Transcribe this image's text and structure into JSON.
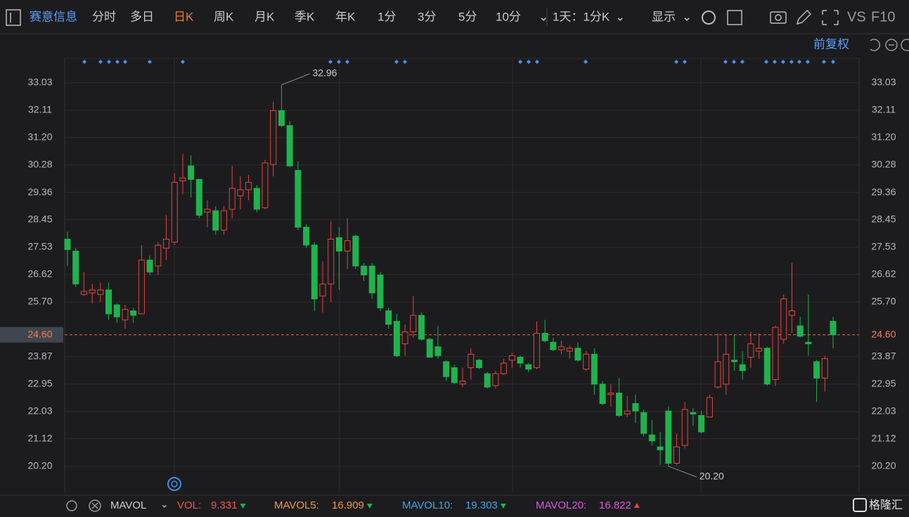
{
  "toolbar": {
    "stock": "赛意信息",
    "tabs": [
      "分时",
      "多日",
      "日K",
      "周K",
      "月K",
      "季K",
      "年K",
      "1分",
      "3分",
      "5分",
      "10分"
    ],
    "period": "1天：1分K",
    "display": "显示",
    "vs": "VS",
    "f10": "F10",
    "adjust": "前复权"
  },
  "chart_data": {
    "type": "candlestick",
    "up_color": "#e8453c",
    "down_color": "#1fb34d",
    "grid": true,
    "ylim": [
      19.35,
      33.85
    ],
    "yticks": [
      {
        "value": 20.2,
        "label": "20.20"
      },
      21.12,
      22.03,
      22.95,
      23.87,
      {
        "value": 25.7,
        "label": "25.70"
      },
      26.62,
      27.53,
      28.45,
      29.36,
      30.28,
      {
        "value": 31.2,
        "label": "31.20"
      },
      32.11,
      33.03
    ],
    "last_price": {
      "value": 24.6,
      "label": "24.60"
    },
    "annotations": [
      "32.96",
      "20.20"
    ],
    "open": [
      27.8,
      27.4,
      25.95,
      26.0,
      25.95,
      26.1,
      25.6,
      25.1,
      25.4,
      25.3,
      27.1,
      26.9,
      27.5,
      27.7,
      29.75,
      30.25,
      29.8,
      28.7,
      28.75,
      28.1,
      28.8,
      29.25,
      29.45,
      29.5,
      28.85,
      30.3,
      32.1,
      31.6,
      30.1,
      28.2,
      27.6,
      25.9,
      26.3,
      27.85,
      27.4,
      27.9,
      26.9,
      26.9,
      26.6,
      25.4,
      25.05,
      24.3,
      24.7,
      25.25,
      24.45,
      24.2,
      23.7,
      23.5,
      22.95,
      23.5,
      23.75,
      23.3,
      22.9,
      23.3,
      23.75,
      23.85,
      23.6,
      23.5,
      24.65,
      24.35,
      24.1,
      24.05,
      24.15,
      23.45,
      23.95,
      22.95,
      22.6,
      22.65,
      21.95,
      22.3,
      22.0,
      21.25,
      20.85,
      22.05,
      20.3,
      20.9,
      22.0,
      21.9,
      21.85,
      22.85,
      22.95,
      23.75,
      23.6,
      23.85,
      24.05,
      24.15,
      23.1,
      24.45,
      25.25,
      24.9,
      24.35,
      23.7,
      23.15,
      25.05
    ],
    "high": [
      28.05,
      27.5,
      26.7,
      26.3,
      26.35,
      26.35,
      25.65,
      25.6,
      25.5,
      27.6,
      27.25,
      27.7,
      28.6,
      30.0,
      30.65,
      30.6,
      29.8,
      29.1,
      28.9,
      28.9,
      30.25,
      29.9,
      29.95,
      29.6,
      30.45,
      32.4,
      32.96,
      31.75,
      30.4,
      28.3,
      27.7,
      27.05,
      28.4,
      28.2,
      28.5,
      27.95,
      27.0,
      27.0,
      26.7,
      25.5,
      25.3,
      24.95,
      25.9,
      25.35,
      24.5,
      24.9,
      23.75,
      23.6,
      23.5,
      24.15,
      23.8,
      23.35,
      23.4,
      23.8,
      24.0,
      23.9,
      23.65,
      25.05,
      25.1,
      24.5,
      24.4,
      24.25,
      24.35,
      24.05,
      24.15,
      23.05,
      22.95,
      23.15,
      22.55,
      22.6,
      22.1,
      21.75,
      21.35,
      22.2,
      21.3,
      22.35,
      22.15,
      22.05,
      22.6,
      24.65,
      24.6,
      24.6,
      24.05,
      24.7,
      24.65,
      24.2,
      24.9,
      25.95,
      27.0,
      25.2,
      25.95,
      23.75,
      23.9,
      25.2
    ],
    "low": [
      26.9,
      26.2,
      25.9,
      25.65,
      25.7,
      25.1,
      25.0,
      24.8,
      25.0,
      25.3,
      26.6,
      26.6,
      27.1,
      27.6,
      29.3,
      29.2,
      28.5,
      28.2,
      27.95,
      27.95,
      28.5,
      28.8,
      29.1,
      28.7,
      28.8,
      29.9,
      31.55,
      30.2,
      28.1,
      27.5,
      25.4,
      25.35,
      25.7,
      26.1,
      26.8,
      26.8,
      26.4,
      25.8,
      25.4,
      24.8,
      23.85,
      23.9,
      24.5,
      24.4,
      23.85,
      23.8,
      23.05,
      22.95,
      22.85,
      23.1,
      23.45,
      22.8,
      22.8,
      23.25,
      23.5,
      23.5,
      23.35,
      23.45,
      24.35,
      24.05,
      23.95,
      23.8,
      23.7,
      23.4,
      22.6,
      22.25,
      22.2,
      21.85,
      21.85,
      21.65,
      21.2,
      20.9,
      20.25,
      20.2,
      20.25,
      20.8,
      21.55,
      21.3,
      21.85,
      22.8,
      22.6,
      23.4,
      23.1,
      23.5,
      23.8,
      22.9,
      22.9,
      24.3,
      24.65,
      24.5,
      23.9,
      22.35,
      22.7,
      24.15
    ],
    "close": [
      27.45,
      26.3,
      26.05,
      26.1,
      26.1,
      25.3,
      25.2,
      25.45,
      25.25,
      27.1,
      26.7,
      27.6,
      27.8,
      29.7,
      29.85,
      29.8,
      28.6,
      28.8,
      28.1,
      28.75,
      29.5,
      29.45,
      29.7,
      28.8,
      30.35,
      32.1,
      31.6,
      30.25,
      28.2,
      27.6,
      25.8,
      26.3,
      27.8,
      27.4,
      27.75,
      26.9,
      26.6,
      26.0,
      25.5,
      24.95,
      23.9,
      24.7,
      25.25,
      24.45,
      23.85,
      23.9,
      23.2,
      23.0,
      23.05,
      23.95,
      23.5,
      22.85,
      23.3,
      23.65,
      23.9,
      23.65,
      23.45,
      24.65,
      24.4,
      24.1,
      24.2,
      24.15,
      23.75,
      23.95,
      22.95,
      22.3,
      22.65,
      21.9,
      22.05,
      22.05,
      21.3,
      21.05,
      20.75,
      20.3,
      20.85,
      22.1,
      21.95,
      21.35,
      22.5,
      23.7,
      23.95,
      23.7,
      23.4,
      24.3,
      24.15,
      22.95,
      24.85,
      25.8,
      25.4,
      24.55,
      24.3,
      23.15,
      23.8,
      24.6
    ]
  },
  "indicator_bar": {
    "name": "MAVOL",
    "items": [
      {
        "label": "VOL:",
        "value": 9.331,
        "color": "#e8584f"
      },
      {
        "label": "MAVOL5:",
        "value": 16.909,
        "color": "#ec9a3c"
      },
      {
        "label": "MAVOL10:",
        "value": 19.303,
        "color": "#3ea7e6"
      },
      {
        "label": "MAVOL20:",
        "value": 16.822,
        "color": "#d45bd8"
      }
    ],
    "brand": "格隆汇"
  }
}
